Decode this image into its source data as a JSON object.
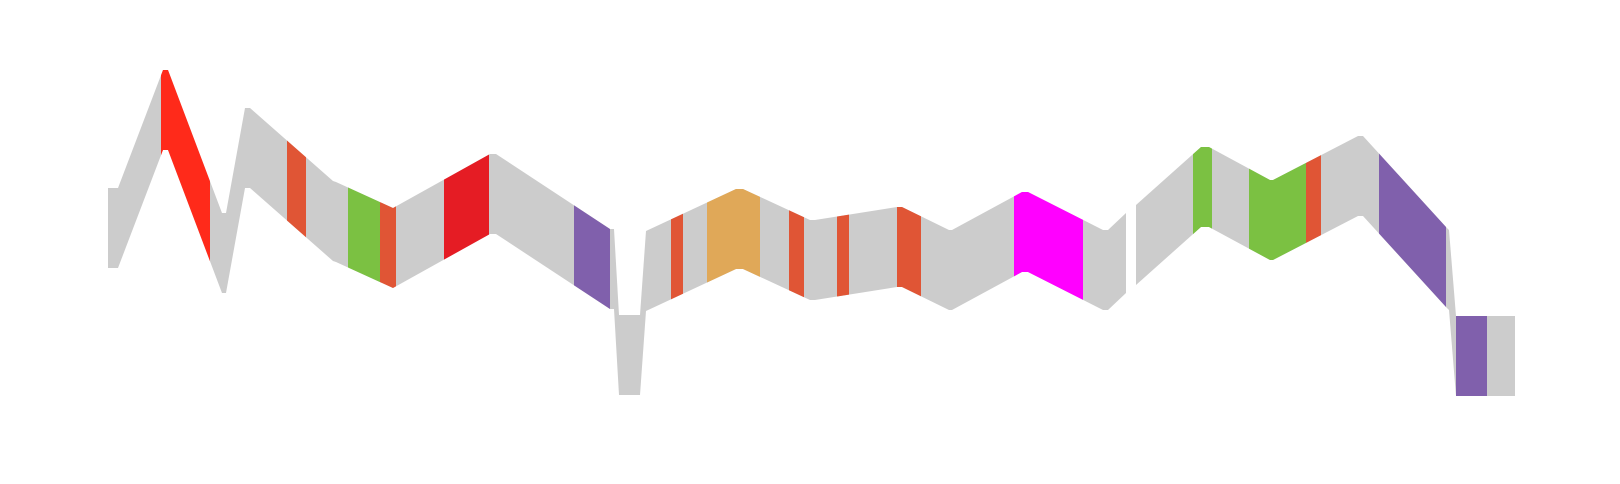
{
  "chart_data": {
    "type": "area",
    "band_thickness": 80,
    "y_range": [
      0,
      484
    ],
    "colors": {
      "default": "#cccccc",
      "red": "#ff2a1a",
      "orange_red": "#e05535",
      "green": "#7bc142",
      "crimson": "#e51c24",
      "purple": "#8060ac",
      "gold": "#e0a858",
      "magenta": "#ff00ff"
    },
    "profile": [
      {
        "x": 108,
        "y": 188
      },
      {
        "x": 118,
        "y": 188
      },
      {
        "x": 163,
        "y": 70
      },
      {
        "x": 168,
        "y": 70
      },
      {
        "x": 222,
        "y": 213
      },
      {
        "x": 226,
        "y": 213
      },
      {
        "x": 245,
        "y": 108
      },
      {
        "x": 250,
        "y": 108
      },
      {
        "x": 333,
        "y": 181
      },
      {
        "x": 336,
        "y": 182
      },
      {
        "x": 393,
        "y": 208
      },
      {
        "x": 490,
        "y": 154
      },
      {
        "x": 496,
        "y": 154
      },
      {
        "x": 610,
        "y": 229
      },
      {
        "x": 614,
        "y": 229
      },
      {
        "x": 619,
        "y": 315
      },
      {
        "x": 640,
        "y": 315
      },
      {
        "x": 646,
        "y": 231
      },
      {
        "x": 736,
        "y": 189
      },
      {
        "x": 743,
        "y": 189
      },
      {
        "x": 810,
        "y": 220
      },
      {
        "x": 815,
        "y": 220
      },
      {
        "x": 897,
        "y": 207
      },
      {
        "x": 902,
        "y": 207
      },
      {
        "x": 949,
        "y": 230
      },
      {
        "x": 952,
        "y": 230
      },
      {
        "x": 1022,
        "y": 192
      },
      {
        "x": 1028,
        "y": 192
      },
      {
        "x": 1103,
        "y": 230
      },
      {
        "x": 1108,
        "y": 230
      },
      {
        "x": 1126,
        "y": 213
      },
      {
        "gap": true
      },
      {
        "x": 1136,
        "y": 205
      },
      {
        "x": 1201,
        "y": 147
      },
      {
        "x": 1209,
        "y": 147
      },
      {
        "x": 1270,
        "y": 180
      },
      {
        "x": 1273,
        "y": 180
      },
      {
        "x": 1358,
        "y": 136
      },
      {
        "x": 1363,
        "y": 136
      },
      {
        "x": 1446,
        "y": 227
      },
      {
        "x": 1449,
        "y": 230
      },
      {
        "x": 1456,
        "y": 316
      },
      {
        "x": 1515,
        "y": 316
      }
    ],
    "segments": [
      {
        "x0": 161,
        "x1": 210,
        "color": "red"
      },
      {
        "x0": 287,
        "x1": 306,
        "color": "orange_red"
      },
      {
        "x0": 348,
        "x1": 380,
        "color": "green"
      },
      {
        "x0": 380,
        "x1": 396,
        "color": "orange_red"
      },
      {
        "x0": 444,
        "x1": 489,
        "color": "crimson"
      },
      {
        "x0": 574,
        "x1": 610,
        "color": "purple"
      },
      {
        "x0": 671,
        "x1": 683,
        "color": "orange_red"
      },
      {
        "x0": 707,
        "x1": 760,
        "color": "gold"
      },
      {
        "x0": 789,
        "x1": 804,
        "color": "orange_red"
      },
      {
        "x0": 837,
        "x1": 849,
        "color": "orange_red"
      },
      {
        "x0": 897,
        "x1": 921,
        "color": "orange_red"
      },
      {
        "x0": 1014,
        "x1": 1083,
        "color": "magenta"
      },
      {
        "x0": 1193,
        "x1": 1212,
        "color": "green"
      },
      {
        "x0": 1249,
        "x1": 1306,
        "color": "green"
      },
      {
        "x0": 1306,
        "x1": 1321,
        "color": "orange_red"
      },
      {
        "x0": 1379,
        "x1": 1446,
        "color": "purple"
      },
      {
        "x0": 1456,
        "x1": 1487,
        "color": "purple"
      }
    ]
  }
}
